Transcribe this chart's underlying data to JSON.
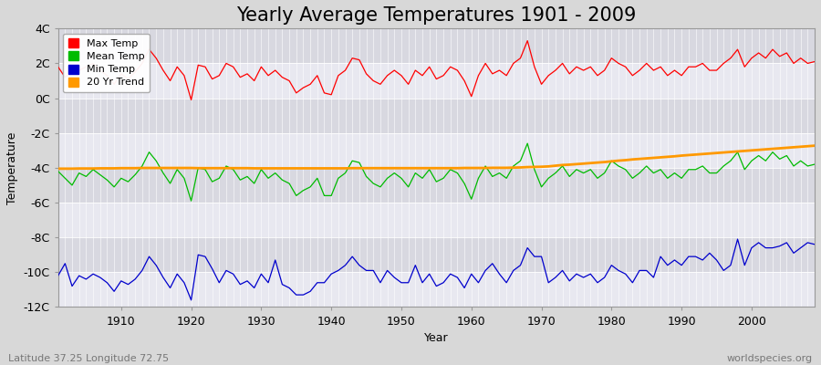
{
  "title": "Yearly Average Temperatures 1901 - 2009",
  "xlabel": "Year",
  "ylabel": "Temperature",
  "xlim": [
    1901,
    2009
  ],
  "ylim": [
    -12,
    4
  ],
  "yticks": [
    -12,
    -10,
    -8,
    -6,
    -4,
    -2,
    0,
    2,
    4
  ],
  "ytick_labels": [
    "-12C",
    "-10C",
    "-8C",
    "-6C",
    "-4C",
    "-2C",
    "0C",
    "2C",
    "4C"
  ],
  "xticks": [
    1910,
    1920,
    1930,
    1940,
    1950,
    1960,
    1970,
    1980,
    1990,
    2000
  ],
  "fig_bg_color": "#d8d8d8",
  "plot_bg_color": "#e0e0e8",
  "band_color_light": "#e8e8f0",
  "band_color_dark": "#d8d8e0",
  "grid_color": "#ffffff",
  "max_temp_color": "#ff0000",
  "mean_temp_color": "#00bb00",
  "min_temp_color": "#0000cc",
  "trend_color": "#ff9900",
  "legend_labels": [
    "Max Temp",
    "Mean Temp",
    "Min Temp",
    "20 Yr Trend"
  ],
  "footer_left": "Latitude 37.25 Longitude 72.75",
  "footer_right": "worldspecies.org",
  "title_fontsize": 15,
  "axis_fontsize": 9,
  "footer_fontsize": 8,
  "years": [
    1901,
    1902,
    1903,
    1904,
    1905,
    1906,
    1907,
    1908,
    1909,
    1910,
    1911,
    1912,
    1913,
    1914,
    1915,
    1916,
    1917,
    1918,
    1919,
    1920,
    1921,
    1922,
    1923,
    1924,
    1925,
    1926,
    1927,
    1928,
    1929,
    1930,
    1931,
    1932,
    1933,
    1934,
    1935,
    1936,
    1937,
    1938,
    1939,
    1940,
    1941,
    1942,
    1943,
    1944,
    1945,
    1946,
    1947,
    1948,
    1949,
    1950,
    1951,
    1952,
    1953,
    1954,
    1955,
    1956,
    1957,
    1958,
    1959,
    1960,
    1961,
    1962,
    1963,
    1964,
    1965,
    1966,
    1967,
    1968,
    1969,
    1970,
    1971,
    1972,
    1973,
    1974,
    1975,
    1976,
    1977,
    1978,
    1979,
    1980,
    1981,
    1982,
    1983,
    1984,
    1985,
    1986,
    1987,
    1988,
    1989,
    1990,
    1991,
    1992,
    1993,
    1994,
    1995,
    1996,
    1997,
    1998,
    1999,
    2000,
    2001,
    2002,
    2003,
    2004,
    2005,
    2006,
    2007,
    2008,
    2009
  ],
  "max_temp": [
    1.8,
    1.2,
    1.5,
    1.6,
    1.8,
    2.0,
    1.6,
    1.3,
    0.8,
    1.4,
    1.1,
    1.5,
    2.0,
    2.8,
    2.3,
    1.6,
    1.0,
    1.8,
    1.3,
    -0.1,
    1.9,
    1.8,
    1.1,
    1.3,
    2.0,
    1.8,
    1.2,
    1.4,
    1.0,
    1.8,
    1.3,
    1.6,
    1.2,
    1.0,
    0.3,
    0.6,
    0.8,
    1.3,
    0.3,
    0.2,
    1.3,
    1.6,
    2.3,
    2.2,
    1.4,
    1.0,
    0.8,
    1.3,
    1.6,
    1.3,
    0.8,
    1.6,
    1.3,
    1.8,
    1.1,
    1.3,
    1.8,
    1.6,
    1.0,
    0.1,
    1.3,
    2.0,
    1.4,
    1.6,
    1.3,
    2.0,
    2.3,
    3.3,
    1.8,
    0.8,
    1.3,
    1.6,
    2.0,
    1.4,
    1.8,
    1.6,
    1.8,
    1.3,
    1.6,
    2.3,
    2.0,
    1.8,
    1.3,
    1.6,
    2.0,
    1.6,
    1.8,
    1.3,
    1.6,
    1.3,
    1.8,
    1.8,
    2.0,
    1.6,
    1.6,
    2.0,
    2.3,
    2.8,
    1.8,
    2.3,
    2.6,
    2.3,
    2.8,
    2.4,
    2.6,
    2.0,
    2.3,
    2.0,
    2.1
  ],
  "mean_temp": [
    -4.2,
    -4.6,
    -5.0,
    -4.3,
    -4.5,
    -4.1,
    -4.4,
    -4.7,
    -5.1,
    -4.6,
    -4.8,
    -4.4,
    -3.9,
    -3.1,
    -3.6,
    -4.3,
    -4.9,
    -4.1,
    -4.6,
    -5.9,
    -4.0,
    -4.1,
    -4.8,
    -4.6,
    -3.9,
    -4.1,
    -4.7,
    -4.5,
    -4.9,
    -4.1,
    -4.6,
    -4.3,
    -4.7,
    -4.9,
    -5.6,
    -5.3,
    -5.1,
    -4.6,
    -5.6,
    -5.6,
    -4.6,
    -4.3,
    -3.6,
    -3.7,
    -4.5,
    -4.9,
    -5.1,
    -4.6,
    -4.3,
    -4.6,
    -5.1,
    -4.3,
    -4.6,
    -4.1,
    -4.8,
    -4.6,
    -4.1,
    -4.3,
    -4.9,
    -5.8,
    -4.6,
    -3.9,
    -4.5,
    -4.3,
    -4.6,
    -3.9,
    -3.6,
    -2.6,
    -4.1,
    -5.1,
    -4.6,
    -4.3,
    -3.9,
    -4.5,
    -4.1,
    -4.3,
    -4.1,
    -4.6,
    -4.3,
    -3.6,
    -3.9,
    -4.1,
    -4.6,
    -4.3,
    -3.9,
    -4.3,
    -4.1,
    -4.6,
    -4.3,
    -4.6,
    -4.1,
    -4.1,
    -3.9,
    -4.3,
    -4.3,
    -3.9,
    -3.6,
    -3.1,
    -4.1,
    -3.6,
    -3.3,
    -3.6,
    -3.1,
    -3.5,
    -3.3,
    -3.9,
    -3.6,
    -3.9,
    -3.8
  ],
  "min_temp": [
    -10.2,
    -9.5,
    -10.8,
    -10.2,
    -10.4,
    -10.1,
    -10.3,
    -10.6,
    -11.1,
    -10.5,
    -10.7,
    -10.4,
    -9.9,
    -9.1,
    -9.6,
    -10.3,
    -10.9,
    -10.1,
    -10.6,
    -11.6,
    -9.0,
    -9.1,
    -9.8,
    -10.6,
    -9.9,
    -10.1,
    -10.7,
    -10.5,
    -10.9,
    -10.1,
    -10.6,
    -9.3,
    -10.7,
    -10.9,
    -11.3,
    -11.3,
    -11.1,
    -10.6,
    -10.6,
    -10.1,
    -9.9,
    -9.6,
    -9.1,
    -9.6,
    -9.9,
    -9.9,
    -10.6,
    -9.9,
    -10.3,
    -10.6,
    -10.6,
    -9.6,
    -10.6,
    -10.1,
    -10.8,
    -10.6,
    -10.1,
    -10.3,
    -10.9,
    -10.1,
    -10.6,
    -9.9,
    -9.5,
    -10.1,
    -10.6,
    -9.9,
    -9.6,
    -8.6,
    -9.1,
    -9.1,
    -10.6,
    -10.3,
    -9.9,
    -10.5,
    -10.1,
    -10.3,
    -10.1,
    -10.6,
    -10.3,
    -9.6,
    -9.9,
    -10.1,
    -10.6,
    -9.9,
    -9.9,
    -10.3,
    -9.1,
    -9.6,
    -9.3,
    -9.6,
    -9.1,
    -9.1,
    -9.3,
    -8.9,
    -9.3,
    -9.9,
    -9.6,
    -8.1,
    -9.6,
    -8.6,
    -8.3,
    -8.6,
    -8.6,
    -8.5,
    -8.3,
    -8.9,
    -8.6,
    -8.3,
    -8.4
  ],
  "trend_mean": [
    -4.05,
    -4.05,
    -4.05,
    -4.04,
    -4.04,
    -4.04,
    -4.03,
    -4.03,
    -4.03,
    -4.02,
    -4.02,
    -4.02,
    -4.01,
    -4.01,
    -4.01,
    -4.01,
    -4.01,
    -4.01,
    -4.01,
    -4.01,
    -4.02,
    -4.02,
    -4.02,
    -4.02,
    -4.02,
    -4.02,
    -4.02,
    -4.02,
    -4.03,
    -4.03,
    -4.03,
    -4.03,
    -4.03,
    -4.03,
    -4.03,
    -4.03,
    -4.03,
    -4.03,
    -4.03,
    -4.03,
    -4.03,
    -4.03,
    -4.02,
    -4.02,
    -4.02,
    -4.02,
    -4.02,
    -4.02,
    -4.02,
    -4.02,
    -4.02,
    -4.02,
    -4.02,
    -4.02,
    -4.02,
    -4.02,
    -4.02,
    -4.02,
    -4.01,
    -4.01,
    -4.01,
    -4.01,
    -4.0,
    -4.0,
    -4.0,
    -3.99,
    -3.98,
    -3.96,
    -3.95,
    -3.94,
    -3.92,
    -3.88,
    -3.84,
    -3.82,
    -3.79,
    -3.76,
    -3.73,
    -3.7,
    -3.67,
    -3.63,
    -3.59,
    -3.56,
    -3.52,
    -3.49,
    -3.46,
    -3.43,
    -3.4,
    -3.37,
    -3.34,
    -3.3,
    -3.27,
    -3.24,
    -3.21,
    -3.18,
    -3.15,
    -3.12,
    -3.09,
    -3.06,
    -3.03,
    -3.0,
    -2.97,
    -2.94,
    -2.91,
    -2.88,
    -2.85,
    -2.82,
    -2.79,
    -2.76,
    -2.73
  ]
}
